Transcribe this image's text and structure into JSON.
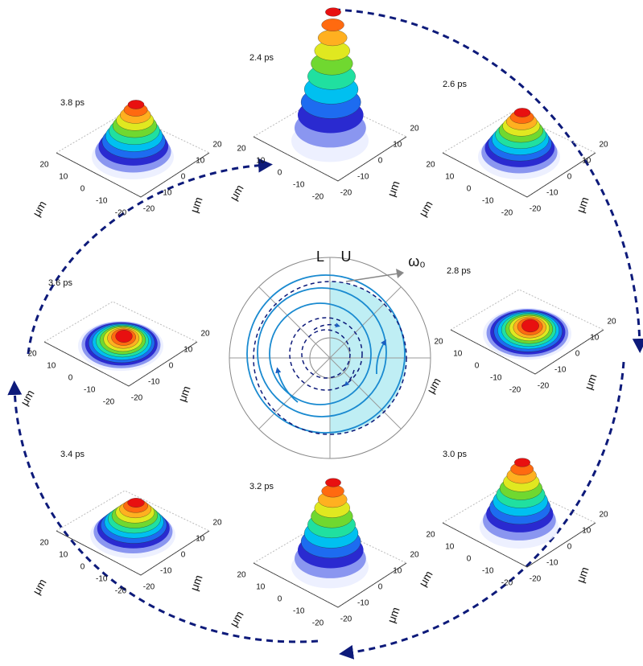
{
  "panels": [
    {
      "time": "3.8 ps"
    },
    {
      "time": "2.4 ps"
    },
    {
      "time": "2.6 ps"
    },
    {
      "time": "3.6 ps"
    },
    {
      "time": "2.8 ps"
    },
    {
      "time": "3.4 ps"
    },
    {
      "time": "3.2 ps"
    },
    {
      "time": "3.0 ps"
    }
  ],
  "axis": {
    "ticks": [
      "20",
      "10",
      "0",
      "-10",
      "-20"
    ],
    "unit": "μm"
  },
  "center": {
    "left_label": "L",
    "right_label": "U",
    "frequency_label": "ω₀"
  }
}
